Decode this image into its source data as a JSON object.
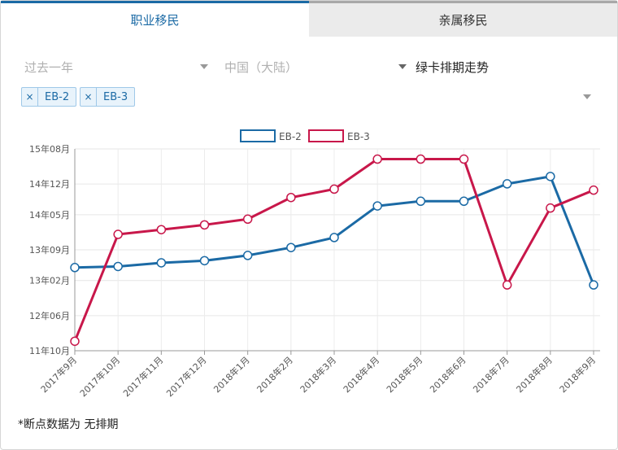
{
  "tabs": {
    "employment": "职业移民",
    "family": "亲属移民"
  },
  "filters": {
    "period": "过去一年",
    "country": "中国（大陆）",
    "view": "绿卡排期走势"
  },
  "tags": [
    "EB-2",
    "EB-3"
  ],
  "tag_remove": "×",
  "footnote": "*断点数据为 无排期",
  "colors": {
    "EB-2": "#1b6aa5",
    "EB-3": "#c8174a"
  },
  "chart_data": {
    "type": "line",
    "categories": [
      "2017年9月",
      "2017年10月",
      "2017年11月",
      "2017年12月",
      "2018年1月",
      "2018年2月",
      "2018年3月",
      "2018年4月",
      "2018年5月",
      "2018年6月",
      "2018年7月",
      "2018年8月",
      "2018年9月"
    ],
    "y_ticks": [
      {
        "label": "15年08月",
        "value": 2015.5833
      },
      {
        "label": "14年12月",
        "value": 2014.9167
      },
      {
        "label": "14年05月",
        "value": 2014.3333
      },
      {
        "label": "13年09月",
        "value": 2013.6667
      },
      {
        "label": "13年02月",
        "value": 2013.0833
      },
      {
        "label": "12年06月",
        "value": 2012.4167
      },
      {
        "label": "11年10月",
        "value": 2011.75
      }
    ],
    "ylim": [
      2011.75,
      2015.5833
    ],
    "legend": "top-center",
    "grid": true,
    "series": [
      {
        "name": "EB-2",
        "values": [
          2013.33,
          2013.35,
          2013.42,
          2013.46,
          2013.56,
          2013.71,
          2013.9,
          2014.5,
          2014.59,
          2014.59,
          2014.92,
          2015.06,
          2013.0
        ]
      },
      {
        "name": "EB-3",
        "values": [
          2011.93,
          2013.96,
          2014.05,
          2014.14,
          2014.25,
          2014.66,
          2014.82,
          2015.39,
          2015.39,
          2015.39,
          2013.0,
          2014.46,
          2014.8
        ]
      }
    ]
  }
}
